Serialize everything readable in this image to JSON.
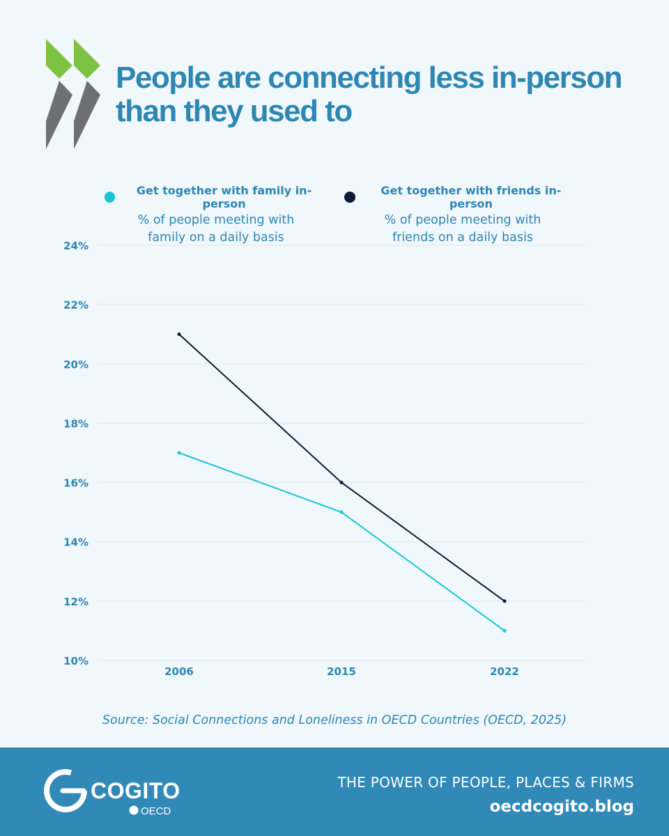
{
  "colors": {
    "accent": "#2e86b3",
    "footer": "#3089b7",
    "family": "#18c6d6",
    "friends": "#0e1a36",
    "chevron_green": "#7dc242",
    "chevron_gray": "#6e6f73",
    "grid": "#dde8ee"
  },
  "header": {
    "title_line1": "People are connecting less in-person",
    "title_line2": "than they used to"
  },
  "legend": {
    "family": {
      "label": "Get together with family in-person",
      "sub1": "% of people meeting with",
      "sub2": "family on a daily basis"
    },
    "friends": {
      "label": "Get together with friends in-person",
      "sub1": "% of people meeting with",
      "sub2": "friends on a daily basis"
    }
  },
  "chart_data": {
    "type": "line",
    "categories": [
      "2006",
      "2015",
      "2022"
    ],
    "series": [
      {
        "name": "Get together with family in-person",
        "values": [
          17,
          15,
          11
        ]
      },
      {
        "name": "Get together with friends in-person",
        "values": [
          21,
          16,
          12
        ]
      }
    ],
    "ylim": [
      10,
      24
    ],
    "yticks": [
      10,
      12,
      14,
      16,
      18,
      20,
      22,
      24
    ],
    "ytick_labels": [
      "10%",
      "12%",
      "14%",
      "16%",
      "18%",
      "20%",
      "22%",
      "24%"
    ],
    "grid": true,
    "title": "People are connecting less in-person than they used to",
    "xlabel": "",
    "ylabel": ""
  },
  "source": "Source: Social Connections and Loneliness in OECD Countries (OECD, 2025)",
  "footer": {
    "brand": "COGITO",
    "org": "OECD",
    "tagline": "THE POWER OF PEOPLE, PLACES & FIRMS",
    "url": "oecdcogito.blog"
  }
}
